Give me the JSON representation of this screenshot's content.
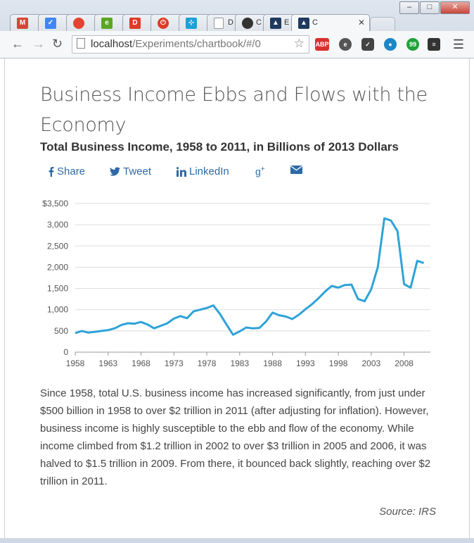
{
  "browser": {
    "tabs": [
      {
        "icon": "gmail-icon",
        "label": "",
        "color": "#d44638"
      },
      {
        "icon": "inbox-icon",
        "label": "",
        "color": "#4285f4"
      },
      {
        "icon": "todoist-icon",
        "label": "",
        "color": "#e44332"
      },
      {
        "icon": "evernote-icon",
        "label": "",
        "color": "#5ba525"
      },
      {
        "icon": "trello-icon",
        "label": "",
        "color": "#e03b24"
      },
      {
        "icon": "power-icon",
        "label": "",
        "color": "#e03b24"
      },
      {
        "icon": "analytics-icon",
        "label": "",
        "color": "#1da1d6"
      },
      {
        "icon": "document-icon",
        "label": "D",
        "color": "#9e9e9e"
      },
      {
        "icon": "github-icon",
        "label": "C",
        "color": "#333333"
      },
      {
        "icon": "app-icon",
        "label": "E",
        "color": "#1f3a5f"
      },
      {
        "icon": "app-icon",
        "label": "C",
        "color": "#1f3a5f"
      }
    ],
    "url_host": "localhost",
    "url_path": "/Experiments/chartbook/#/0",
    "extensions": [
      "ABP",
      "evernote",
      "pocket",
      "eye",
      "chat",
      "layers"
    ]
  },
  "page": {
    "title": "Business Income Ebbs and Flows with the Economy",
    "subtitle": "Total Business Income, 1958 to 2011, in Billions of 2013 Dollars",
    "share": {
      "facebook": "Share",
      "twitter": "Tweet",
      "linkedin": "LinkedIn"
    },
    "body": "Since 1958, total U.S. business income has increased significantly, from just under $500 billion in 1958 to over $2 trillion in 2011 (after adjusting for inflation). However, business income is highly susceptible to the ebb and flow of the economy. While income climbed from $1.2 trillion in 2002 to over $3 trillion in 2005 and 2006, it was halved to $1.5 trillion in 2009. From there, it bounced back slightly, reaching over $2 trillion in 2011.",
    "source": "Source: IRS"
  },
  "chart_data": {
    "type": "line",
    "ylim": [
      0,
      3500
    ],
    "xlim": [
      1958,
      2012
    ],
    "y_ticks": [
      "$3,500",
      "3,000",
      "2,500",
      "2,000",
      "1,500",
      "1,000",
      "500",
      "0"
    ],
    "x_ticks": [
      "1958",
      "1963",
      "1968",
      "1973",
      "1978",
      "1983",
      "1988",
      "1993",
      "1998",
      "2003",
      "2008"
    ],
    "line_color": "#2ea3d8",
    "grid": true,
    "x": [
      1958,
      1959,
      1960,
      1961,
      1962,
      1963,
      1964,
      1965,
      1966,
      1967,
      1968,
      1969,
      1970,
      1971,
      1972,
      1973,
      1974,
      1975,
      1976,
      1977,
      1978,
      1979,
      1980,
      1981,
      1982,
      1983,
      1984,
      1985,
      1986,
      1987,
      1988,
      1989,
      1990,
      1991,
      1992,
      1993,
      1994,
      1995,
      1996,
      1997,
      1998,
      1999,
      2000,
      2001,
      2002,
      2003,
      2004,
      2005,
      2006,
      2007,
      2008,
      2009,
      2010,
      2011
    ],
    "y": [
      450,
      500,
      460,
      480,
      500,
      520,
      560,
      640,
      680,
      670,
      710,
      650,
      560,
      620,
      680,
      790,
      850,
      800,
      960,
      1000,
      1040,
      1100,
      900,
      650,
      410,
      490,
      580,
      560,
      570,
      720,
      930,
      870,
      840,
      780,
      880,
      1010,
      1130,
      1270,
      1430,
      1560,
      1520,
      1580,
      1590,
      1250,
      1200,
      1480,
      2000,
      3150,
      3100,
      2850,
      1600,
      1520,
      2150,
      2100
    ]
  }
}
